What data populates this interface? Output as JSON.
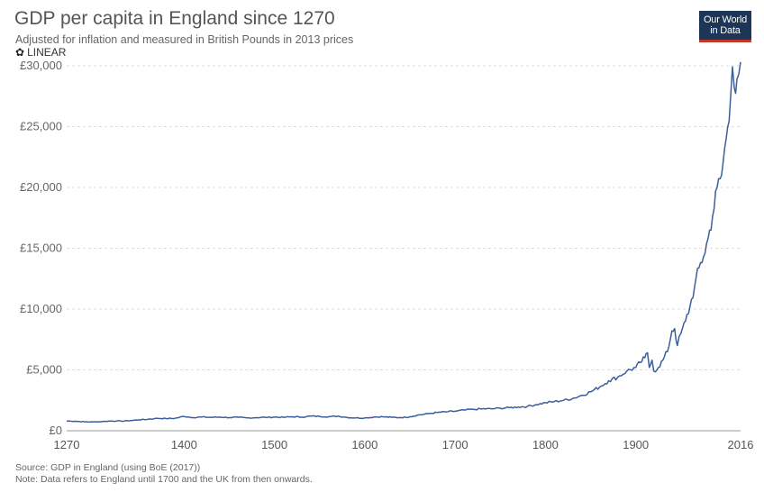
{
  "header": {
    "title": "GDP per capita in England since 1270",
    "subtitle": "Adjusted for inflation and measured in British Pounds in 2013 prices",
    "scale_label": "LINEAR"
  },
  "logo": {
    "line1": "Our World",
    "line2": "in Data"
  },
  "footer": {
    "source": "Source: GDP in England (using BoE (2017))",
    "note": "Note: Data refers to England until 1700 and the UK from then onwards."
  },
  "colors": {
    "line": "#3b5f9c",
    "grid": "#dddddd",
    "logo_bg": "#1d3557",
    "logo_accent": "#c0392b"
  },
  "chart_data": {
    "type": "line",
    "title": "GDP per capita in England since 1270",
    "xlabel": "",
    "ylabel": "",
    "xlim": [
      1270,
      2016
    ],
    "ylim": [
      0,
      30000
    ],
    "x_ticks": [
      1270,
      1400,
      1500,
      1600,
      1700,
      1800,
      1900,
      2016
    ],
    "y_ticks": [
      0,
      5000,
      10000,
      15000,
      20000,
      25000,
      30000
    ],
    "y_tick_labels": [
      "£0",
      "£5,000",
      "£10,000",
      "£15,000",
      "£20,000",
      "£25,000",
      "£30,000"
    ],
    "grid": true,
    "series": [
      {
        "x": [
          1270,
          1280,
          1290,
          1300,
          1310,
          1320,
          1330,
          1340,
          1350,
          1360,
          1370,
          1380,
          1390,
          1400,
          1410,
          1420,
          1430,
          1440,
          1450,
          1460,
          1470,
          1480,
          1490,
          1500,
          1510,
          1520,
          1530,
          1540,
          1550,
          1560,
          1570,
          1580,
          1590,
          1600,
          1610,
          1620,
          1630,
          1640,
          1650,
          1660,
          1670,
          1680,
          1690,
          1700,
          1710,
          1720,
          1730,
          1740,
          1750,
          1760,
          1770,
          1780,
          1790,
          1800,
          1810,
          1820,
          1830,
          1840,
          1850,
          1860,
          1870,
          1880,
          1890,
          1900,
          1905,
          1910,
          1913,
          1915,
          1918,
          1920,
          1925,
          1930,
          1935,
          1940,
          1943,
          1946,
          1950,
          1955,
          1960,
          1965,
          1970,
          1975,
          1980,
          1985,
          1990,
          1995,
          2000,
          2005,
          2007,
          2009,
          2012,
          2016
        ],
        "values": [
          800,
          780,
          730,
          720,
          760,
          800,
          790,
          830,
          900,
          940,
          1020,
          1000,
          1020,
          1180,
          1080,
          1130,
          1100,
          1120,
          1080,
          1100,
          1050,
          1080,
          1100,
          1120,
          1100,
          1150,
          1120,
          1200,
          1180,
          1150,
          1200,
          1100,
          1050,
          1050,
          1120,
          1150,
          1100,
          1080,
          1150,
          1300,
          1400,
          1500,
          1550,
          1600,
          1700,
          1750,
          1800,
          1800,
          1850,
          1900,
          1950,
          2000,
          2150,
          2300,
          2400,
          2500,
          2650,
          2900,
          3200,
          3600,
          4100,
          4400,
          4900,
          5200,
          5600,
          6000,
          6400,
          5200,
          5800,
          4900,
          5200,
          5800,
          6500,
          8200,
          8400,
          7000,
          8000,
          9000,
          10200,
          11800,
          13400,
          14300,
          15800,
          17600,
          20000,
          21000,
          24000,
          27500,
          29900,
          28200,
          28900,
          30300
        ]
      }
    ]
  }
}
